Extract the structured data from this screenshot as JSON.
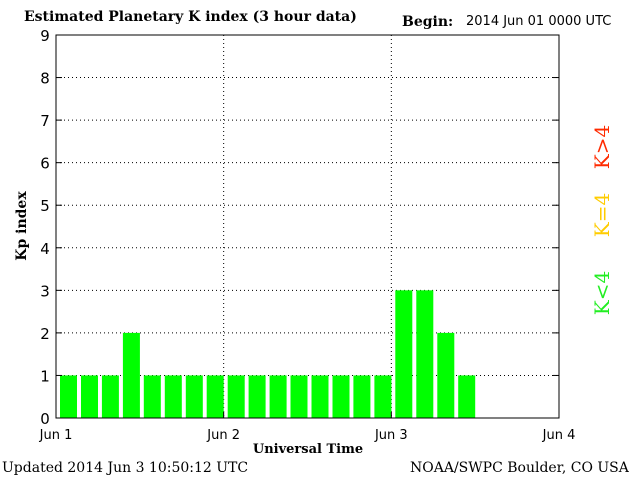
{
  "header": {
    "title": "Estimated Planetary K index (3 hour data)",
    "begin_label": "Begin:",
    "begin_value": "2014 Jun 01 0000 UTC"
  },
  "footer": {
    "updated": "Updated 2014 Jun  3 10:50:12 UTC",
    "source": "NOAA/SWPC Boulder, CO USA"
  },
  "legend": {
    "high": {
      "label": "K>4",
      "color": "#ff2a00"
    },
    "equal": {
      "label": "K=4",
      "color": "#ffcc00"
    },
    "low": {
      "label": "K<4",
      "color": "#22ee22"
    }
  },
  "chart_data": {
    "type": "bar",
    "title": "Estimated Planetary K index (3 hour data)",
    "xlabel": "Universal Time",
    "ylabel": "Kp index",
    "ylim": [
      0,
      9
    ],
    "yticks": [
      "0",
      "1",
      "2",
      "3",
      "4",
      "5",
      "6",
      "7",
      "8",
      "9"
    ],
    "xticks": [
      "Jun 1",
      "Jun 2",
      "Jun 3",
      "Jun 4"
    ],
    "x_range_days": 3,
    "grid": true,
    "bar_color": "#00ff00",
    "values": [
      1,
      1,
      1,
      2,
      1,
      1,
      1,
      1,
      1,
      1,
      1,
      1,
      1,
      1,
      1,
      1,
      3,
      3,
      2,
      1
    ]
  }
}
